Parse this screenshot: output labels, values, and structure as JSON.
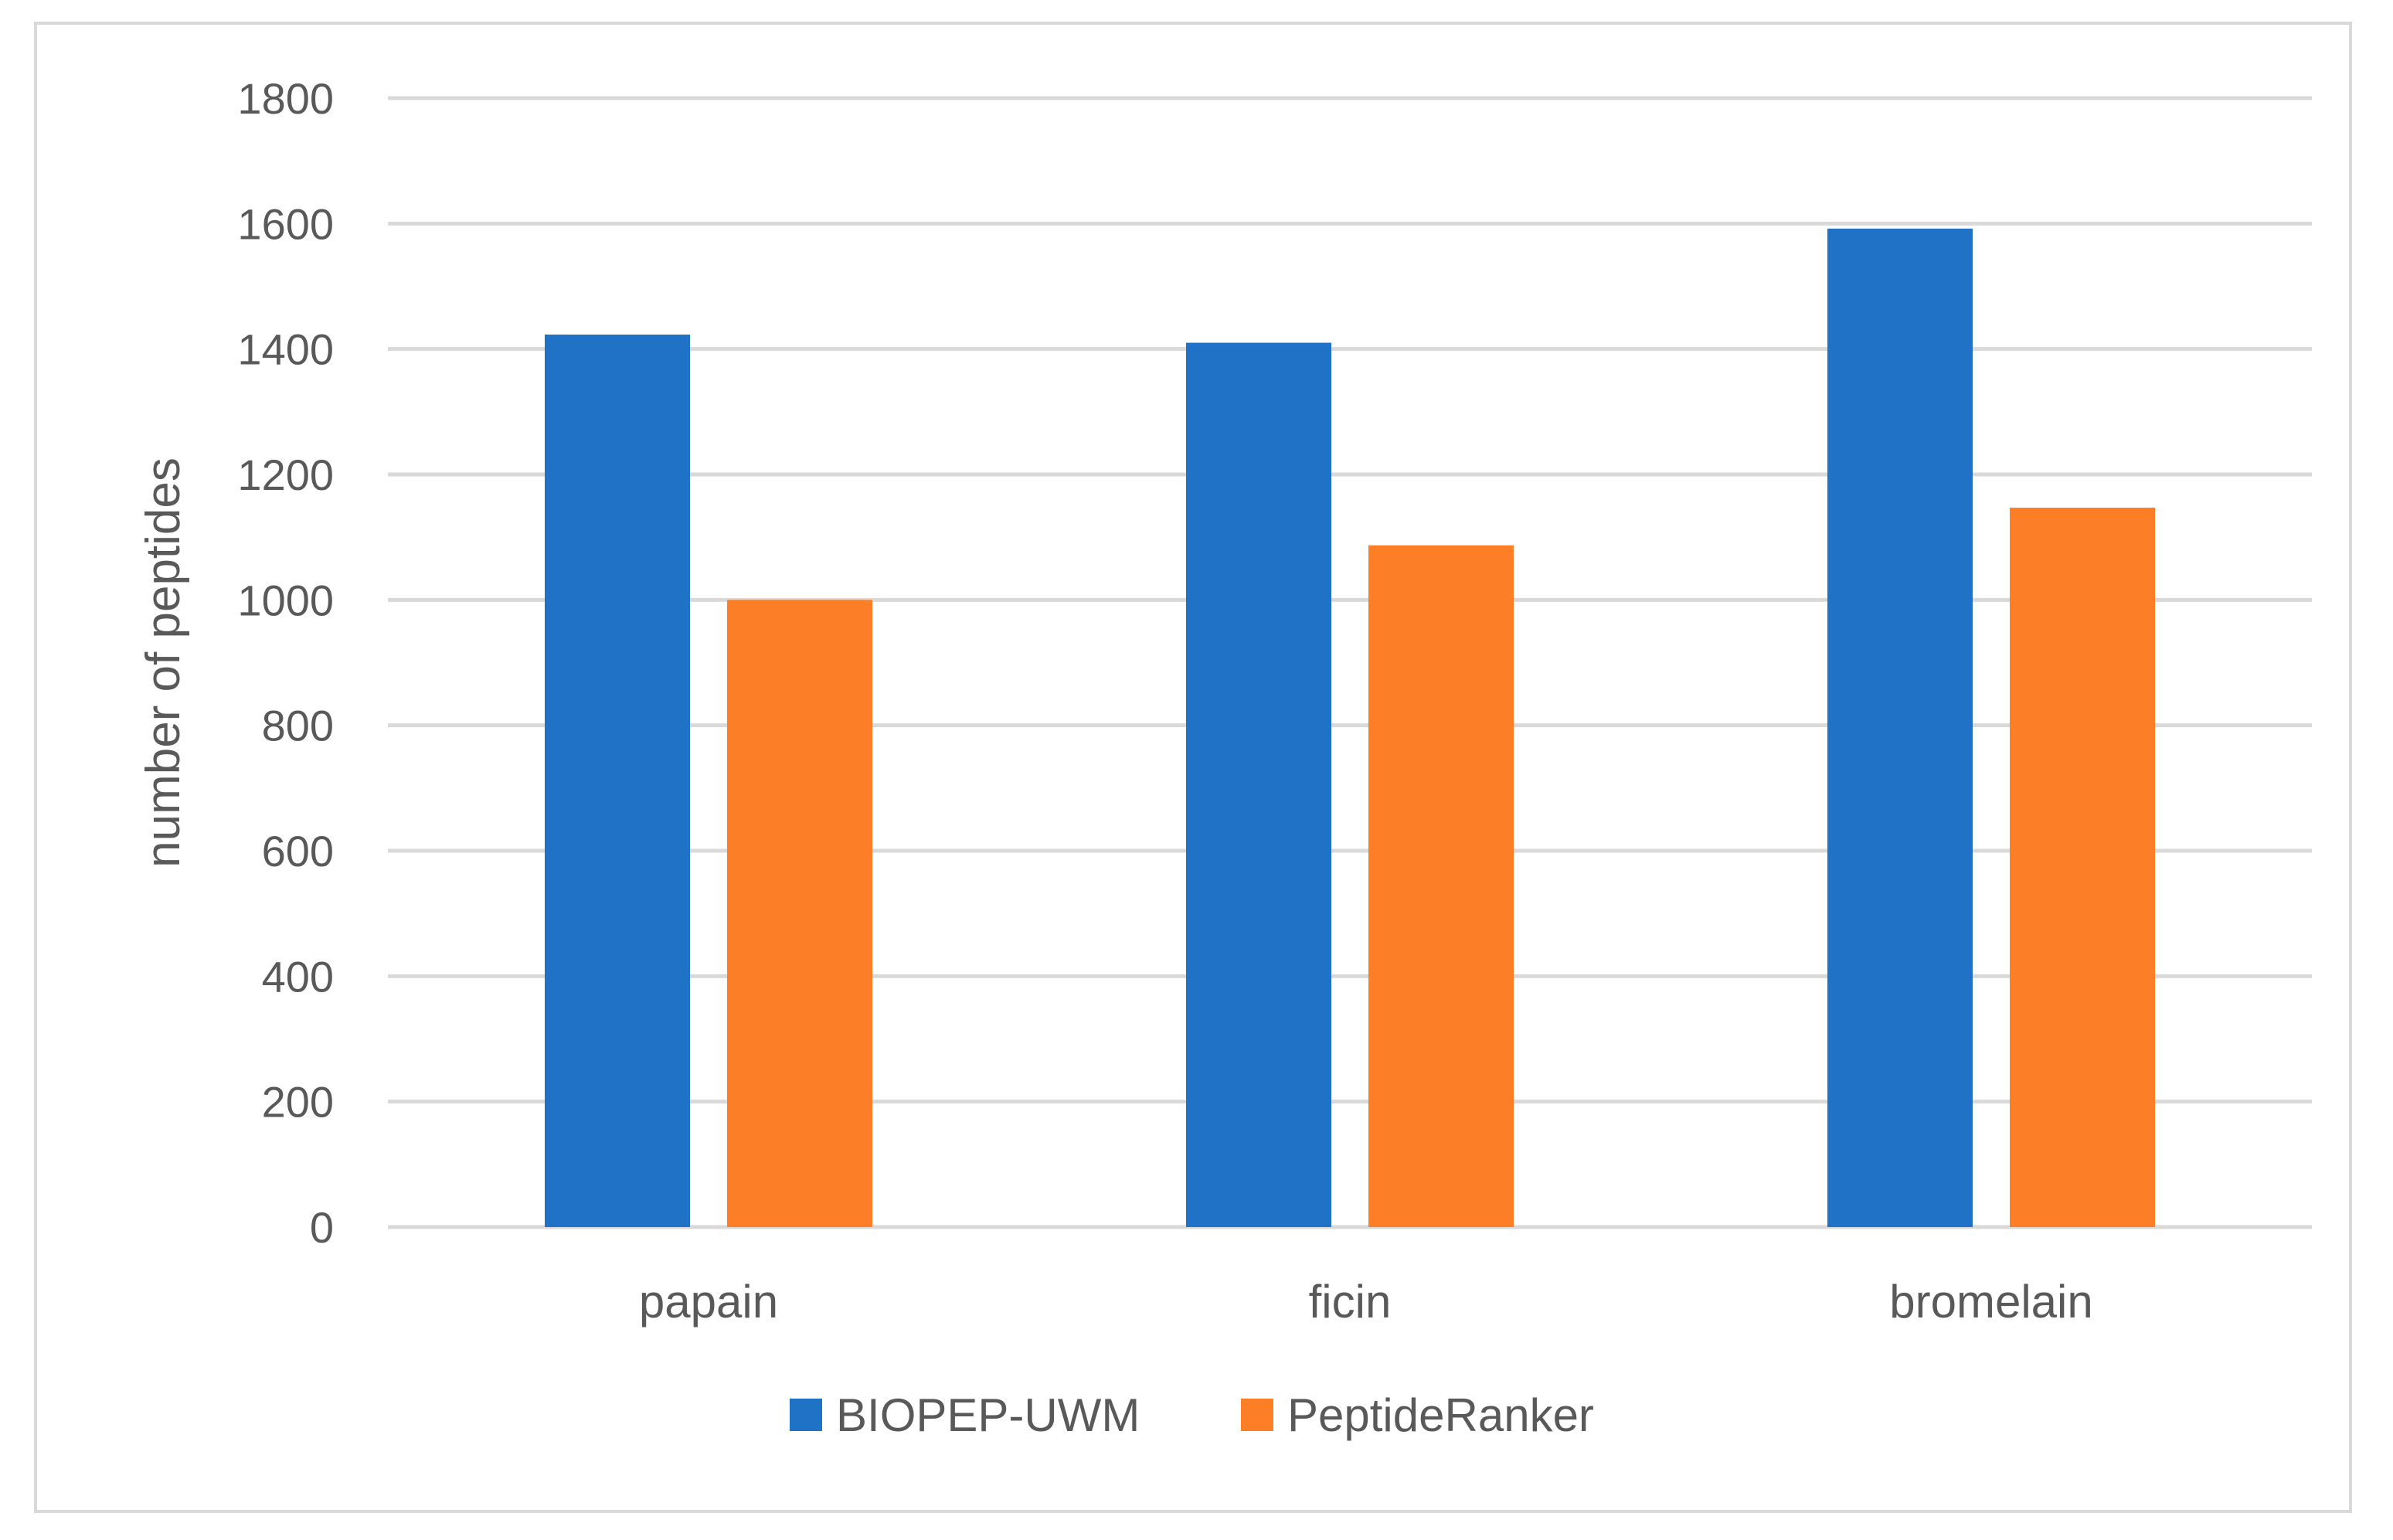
{
  "chart_data": {
    "type": "bar",
    "categories": [
      "papain",
      "ficin",
      "bromelain"
    ],
    "series": [
      {
        "name": "BIOPEP-UWM",
        "values": [
          1423,
          1410,
          1592
        ],
        "color": "#1f72c6"
      },
      {
        "name": "PeptideRanker",
        "values": [
          1000,
          1087,
          1147
        ],
        "color": "#fc7f27"
      }
    ],
    "xlabel": "",
    "ylabel": "number of peptides",
    "ylim": [
      0,
      1800
    ],
    "yticks": [
      0,
      200,
      400,
      600,
      800,
      1000,
      1200,
      1400,
      1600,
      1800
    ],
    "grid": true,
    "legend_position": "bottom-center"
  }
}
